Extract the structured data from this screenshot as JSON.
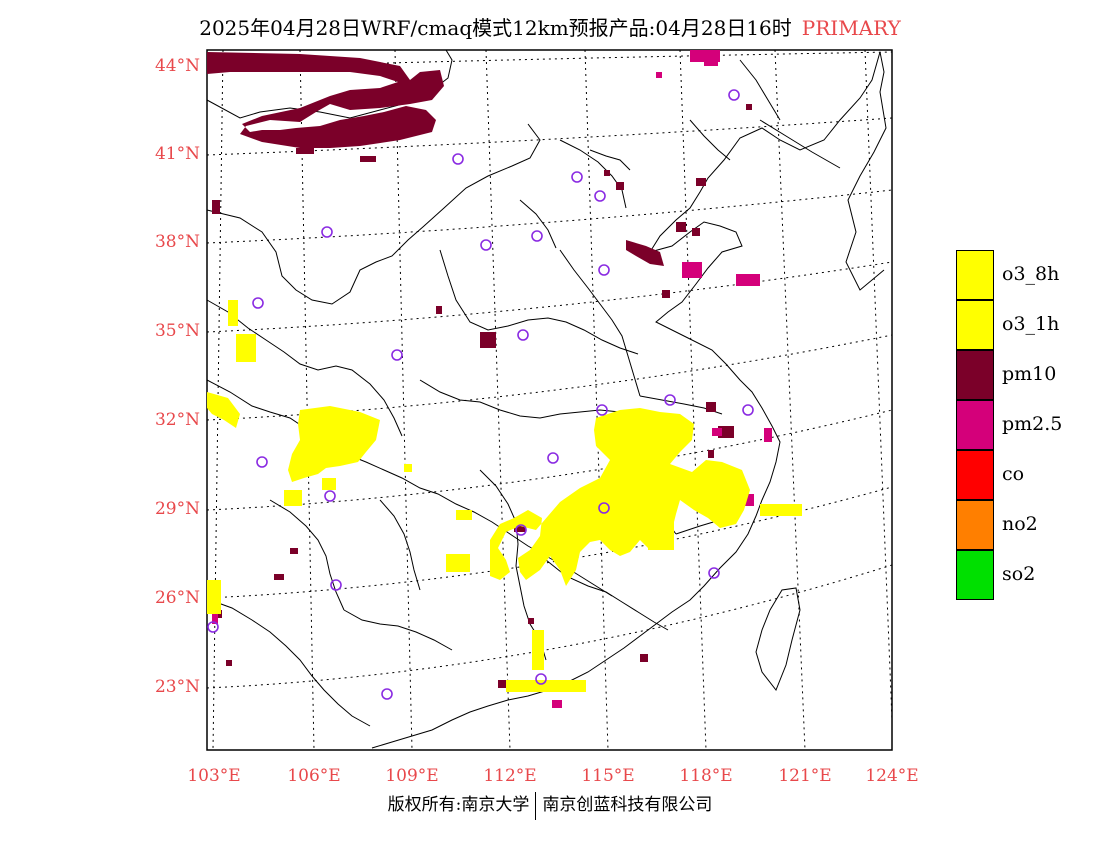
{
  "title": {
    "main": "2025年04月28日WRF/cmaq模式12km预报产品:04月28日16时",
    "tag": "PRIMARY"
  },
  "lat_labels": [
    "44°N",
    "41°N",
    "38°N",
    "35°N",
    "32°N",
    "29°N",
    "26°N",
    "23°N"
  ],
  "lon_labels": [
    "103°E",
    "106°E",
    "109°E",
    "112°E",
    "115°E",
    "118°E",
    "121°E",
    "124°E"
  ],
  "legend": [
    {
      "label": "o3_8h",
      "color": "#ffff00"
    },
    {
      "label": "o3_1h",
      "color": "#ffff00"
    },
    {
      "label": "pm10",
      "color": "#7b0029"
    },
    {
      "label": "pm2.5",
      "color": "#d4007a"
    },
    {
      "label": "co",
      "color": "#ff0000"
    },
    {
      "label": "no2",
      "color": "#ff7f00"
    },
    {
      "label": "so2",
      "color": "#00e000"
    }
  ],
  "footer": {
    "left": "版权所有:南京大学",
    "right": "南京创蓝科技有限公司"
  },
  "colors": {
    "o3": "#ffff00",
    "pm10": "#7b0029",
    "pm25": "#d4007a",
    "station": "#8a2be2",
    "axis_label": "#e8484b"
  }
}
